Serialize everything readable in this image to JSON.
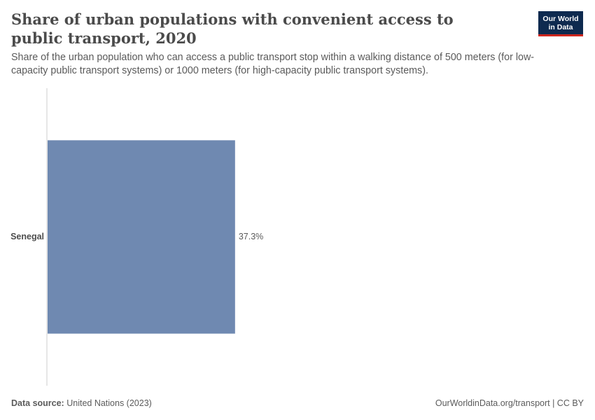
{
  "title": "Share of urban populations with convenient access to public transport, 2020",
  "subtitle": "Share of the urban population who can access a public transport stop within a walking distance of 500 meters (for low-capacity public transport systems) or 1000 meters (for high-capacity public transport systems).",
  "logo": {
    "line1": "Our World",
    "line2": "in Data"
  },
  "footer": {
    "source_label": "Data source:",
    "source_value": "United Nations (2023)",
    "right": "OurWorldinData.org/transport | CC BY"
  },
  "colors": {
    "bar": "#6f89b1",
    "axis": "#cccccc"
  },
  "chart_data": {
    "type": "bar",
    "orientation": "horizontal",
    "categories": [
      "Senegal"
    ],
    "values": [
      37.3
    ],
    "value_labels": [
      "37.3%"
    ],
    "xlim": [
      0,
      100
    ],
    "grid": false
  }
}
